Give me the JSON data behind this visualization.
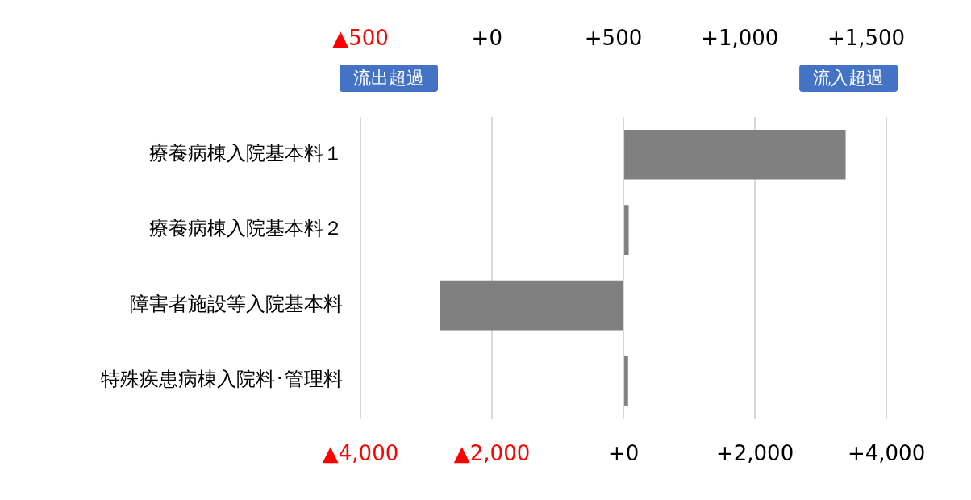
{
  "chart_data": {
    "type": "bar",
    "orientation": "horizontal",
    "categories": [
      "療養病棟入院基本料１",
      "療養病棟入院基本料２",
      "障害者施設等入院基本料",
      "特殊疾患病棟入院料･管理料"
    ],
    "values": [
      3380,
      80,
      -2790,
      70
    ],
    "color": "#808080",
    "xlim": [
      -4000,
      4000
    ],
    "xticks": [
      {
        "value": -4000,
        "label": "▲4,000"
      },
      {
        "value": -2000,
        "label": "▲2,000"
      },
      {
        "value": 0,
        "label": "+0"
      },
      {
        "value": 2000,
        "label": "+2,000"
      },
      {
        "value": 4000,
        "label": "+4,000"
      }
    ],
    "x2lim": [
      -500,
      1580
    ],
    "x2ticks": [
      {
        "value": -500,
        "label": "▲500"
      },
      {
        "value": 0,
        "label": "+0"
      },
      {
        "value": 500,
        "label": "+500"
      },
      {
        "value": 1000,
        "label": "+1,000"
      },
      {
        "value": 1500,
        "label": "+1,500"
      }
    ],
    "annotations": [
      "流出超過",
      "流入超過"
    ],
    "grid": "x",
    "legend": false
  }
}
